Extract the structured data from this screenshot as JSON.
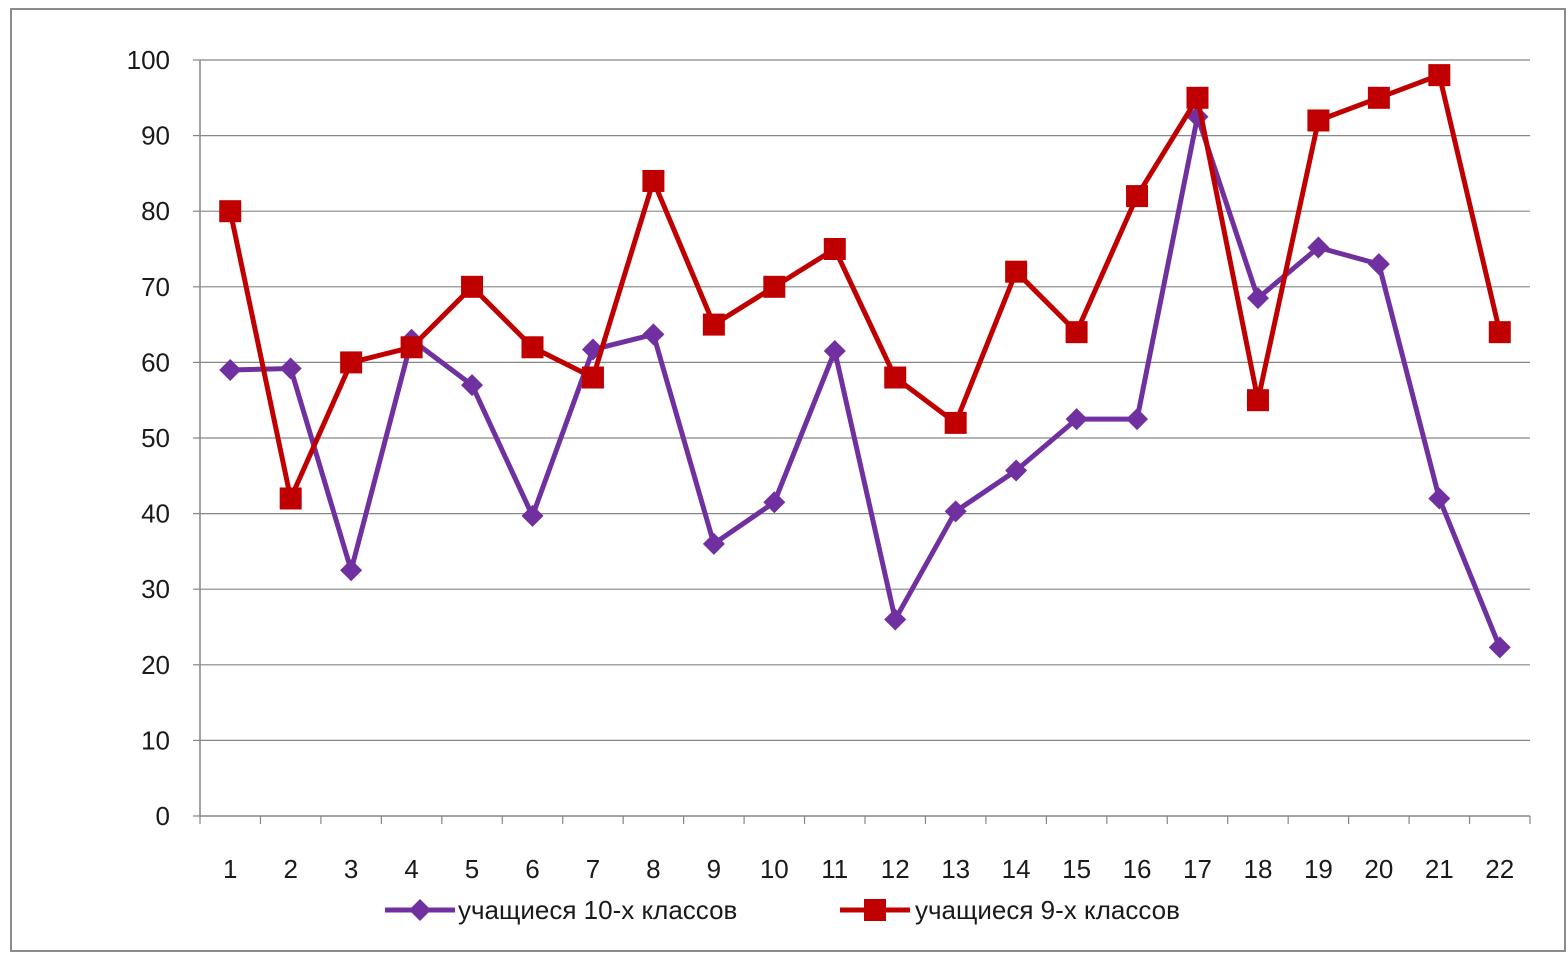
{
  "chart_data": {
    "type": "line",
    "title": "",
    "xlabel": "",
    "ylabel": "",
    "categories": [
      "1",
      "2",
      "3",
      "4",
      "5",
      "6",
      "7",
      "8",
      "9",
      "10",
      "11",
      "12",
      "13",
      "14",
      "15",
      "16",
      "17",
      "18",
      "19",
      "20",
      "21",
      "22"
    ],
    "ylim": [
      0,
      100
    ],
    "yticks": [
      0,
      10,
      20,
      30,
      40,
      50,
      60,
      70,
      80,
      90,
      100
    ],
    "grid": "horizontal",
    "legend_position": "bottom",
    "series": [
      {
        "name": "учащиеся 10-х классов",
        "color": "#7030a0",
        "marker": "diamond",
        "values": [
          59,
          59.2,
          32.5,
          63,
          57,
          39.7,
          61.7,
          63.7,
          36,
          41.5,
          61.5,
          26,
          40.3,
          45.7,
          52.5,
          52.5,
          92.5,
          68.5,
          75.2,
          73,
          42,
          22.3
        ]
      },
      {
        "name": "учащиеся 9-х классов",
        "color": "#c00000",
        "marker": "square",
        "values": [
          80,
          42,
          60,
          62,
          70,
          62,
          58,
          84,
          65,
          70,
          75,
          58,
          52,
          72,
          64,
          82,
          95,
          55,
          92,
          95,
          98,
          64
        ]
      }
    ]
  }
}
